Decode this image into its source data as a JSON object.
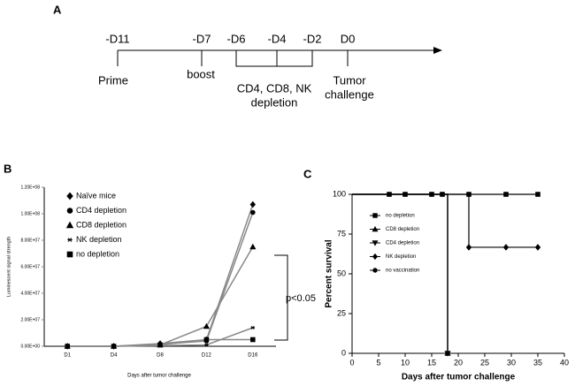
{
  "panel_a": {
    "letter": "A",
    "days": [
      "-D11",
      "-D7",
      "-D6",
      "-D4",
      "-D2",
      "D0"
    ],
    "events": [
      [
        "Prime"
      ],
      [
        "boost"
      ],
      [
        "CD4, CD8, NK",
        "depletion"
      ],
      [
        "Tumor",
        "challenge"
      ]
    ]
  },
  "chart_data": [
    {
      "type": "line",
      "letter": "B",
      "ylabel": "Luminescent signal strength",
      "xlabel": "Days after tumor challenge",
      "categories": [
        "D1",
        "D4",
        "D8",
        "D12",
        "D16"
      ],
      "ylim": [
        0,
        120000000
      ],
      "yticks": [
        {
          "value": 0,
          "label": "0.00E+00"
        },
        {
          "value": 20000000,
          "label": "2.00E+07"
        },
        {
          "value": 40000000,
          "label": "4.00E+07"
        },
        {
          "value": 60000000,
          "label": "6.00E+07"
        },
        {
          "value": 80000000,
          "label": "8.00E+07"
        },
        {
          "value": 100000000,
          "label": "1.00E+08"
        },
        {
          "value": 120000000,
          "label": "1.20E+08"
        }
      ],
      "series": [
        {
          "name": "Naïve mice",
          "marker": "diamond",
          "color": "#888888",
          "values": [
            0,
            0,
            2000000,
            5000000,
            107000000
          ]
        },
        {
          "name": "CD4 depletion",
          "marker": "circle",
          "color": "#888888",
          "values": [
            0,
            0,
            1500000,
            4000000,
            101000000
          ]
        },
        {
          "name": "CD8 depletion",
          "marker": "triangle",
          "color": "#888888",
          "values": [
            0,
            0,
            1000000,
            15000000,
            75000000
          ]
        },
        {
          "name": "NK depletion",
          "marker": "asterisk",
          "color": "#888888",
          "values": [
            0,
            0,
            500000,
            1000000,
            14000000
          ]
        },
        {
          "name": "no depletion",
          "marker": "square",
          "color": "#888888",
          "values": [
            0,
            0,
            1000000,
            5000000,
            5000000
          ]
        }
      ],
      "annotation": "p<0.05"
    },
    {
      "type": "step",
      "letter": "C",
      "ylabel": "Percent survival",
      "xlabel": "Days after tumor challenge",
      "xlim": [
        0,
        40
      ],
      "xticks": [
        0,
        5,
        10,
        15,
        20,
        25,
        30,
        35,
        40
      ],
      "ylim": [
        0,
        100
      ],
      "yticks": [
        0,
        25,
        50,
        75,
        100
      ],
      "series": [
        {
          "name": "no depletion",
          "marker": "square",
          "color": "#000000",
          "x": [
            0,
            7,
            10,
            15,
            17,
            22,
            29,
            35
          ],
          "values": [
            100,
            100,
            100,
            100,
            100,
            100,
            100,
            100
          ]
        },
        {
          "name": "CD8 depletion",
          "marker": "triangle",
          "color": "#000000",
          "x": [
            0,
            18
          ],
          "values": [
            100,
            0
          ]
        },
        {
          "name": "CD4 depletion",
          "marker": "triangle-down",
          "color": "#000000",
          "x": [
            0,
            18
          ],
          "values": [
            100,
            0
          ]
        },
        {
          "name": "NK depletion",
          "marker": "diamond",
          "color": "#000000",
          "x": [
            0,
            22,
            29,
            35
          ],
          "values": [
            100,
            66.7,
            66.7,
            66.7
          ]
        },
        {
          "name": "no vaccination",
          "marker": "circle",
          "color": "#000000",
          "x": [
            0,
            18
          ],
          "values": [
            100,
            0
          ]
        }
      ]
    }
  ]
}
